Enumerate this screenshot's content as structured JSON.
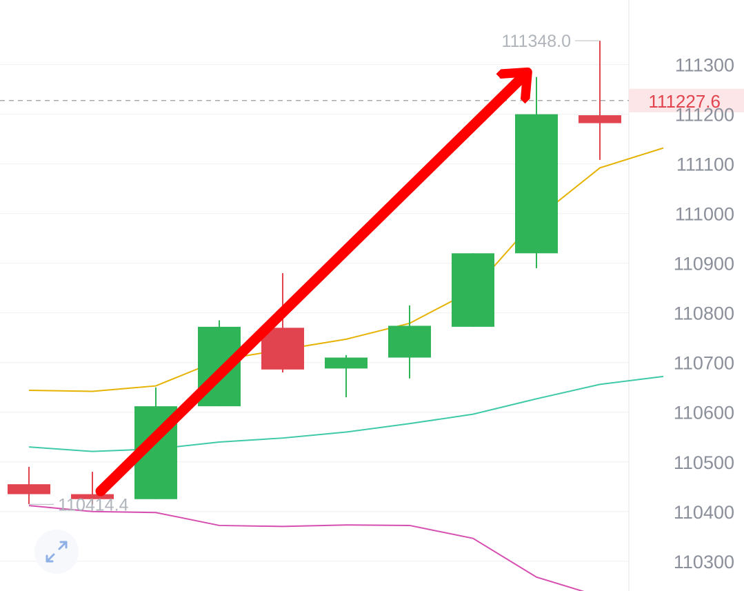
{
  "chart_data": {
    "type": "candlestick",
    "ylim": [
      110240,
      111430
    ],
    "yticks": [
      110300,
      110400,
      110500,
      110600,
      110700,
      110800,
      110900,
      111000,
      111100,
      111200,
      111300
    ],
    "candles": [
      {
        "open": 110455,
        "close": 110435,
        "high": 110490,
        "low": 110415
      },
      {
        "open": 110435,
        "close": 110425,
        "high": 110480,
        "low": 110414.4
      },
      {
        "open": 110425,
        "close": 110612,
        "high": 110650,
        "low": 110425
      },
      {
        "open": 110612,
        "close": 110772,
        "high": 110785,
        "low": 110612
      },
      {
        "open": 110770,
        "close": 110686,
        "high": 110880,
        "low": 110680
      },
      {
        "open": 110688,
        "close": 110710,
        "high": 110715,
        "low": 110630
      },
      {
        "open": 110710,
        "close": 110774,
        "high": 110815,
        "low": 110668
      },
      {
        "open": 110772,
        "close": 110920,
        "high": 110920,
        "low": 110772
      },
      {
        "open": 110920,
        "close": 111200,
        "high": 111275,
        "low": 110890
      },
      {
        "open": 111198,
        "close": 111182,
        "high": 111348,
        "low": 111108
      }
    ],
    "series": [
      {
        "color": "#e6b200",
        "values": [
          110644,
          110642,
          110653,
          110705,
          110726,
          110747,
          110779,
          110846,
          110990,
          111092,
          111132
        ]
      },
      {
        "color": "#3ec9a7",
        "values": [
          110530,
          110521,
          110526,
          110540,
          110548,
          110560,
          110577,
          110596,
          110627,
          110656,
          110672
        ]
      },
      {
        "color": "#d64fb0",
        "values": [
          110412,
          110400,
          110398,
          110372,
          110370,
          110373,
          110372,
          110346,
          110268,
          110229,
          110226
        ]
      }
    ],
    "annotations": {
      "high_label": "111348.0",
      "low_label": "110414.4",
      "current_price": 111227.6,
      "current_price_label": "111227.6"
    },
    "colors": {
      "up": "#2fb457",
      "down": "#e2444f",
      "arrow": "#ff0000",
      "grid": "#f0f1f3",
      "axis_text": "#8a8f99",
      "price_tag_bg": "#fde6e7",
      "price_tag_text": "#e2444f",
      "dashed_line": "#a8a8a8"
    },
    "grid": true,
    "arrow": {
      "from_index": 1,
      "from_value": 110430,
      "to_index": 8,
      "to_value": 111300
    }
  },
  "icons": {
    "expand": "expand-arrows-icon"
  }
}
